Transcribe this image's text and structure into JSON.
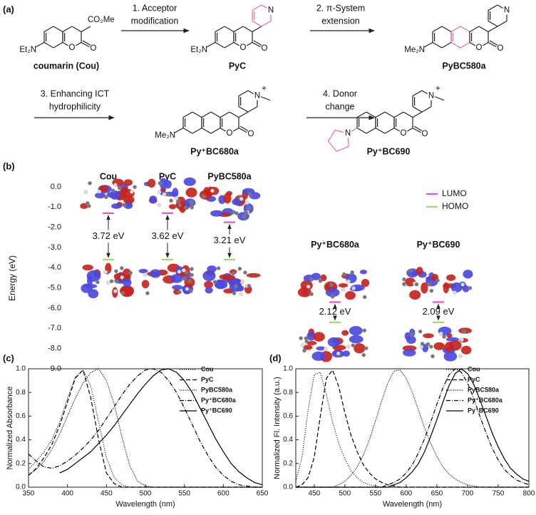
{
  "panels": [
    "(a)",
    "(b)",
    "(c)",
    "(d)"
  ],
  "scheme": {
    "steps": [
      [
        "1. Acceptor",
        "modification"
      ],
      [
        "2. π-System",
        "extension"
      ],
      [
        "3. Enhancing ICT",
        "hydrophilicity"
      ],
      [
        "4. Donor",
        "change"
      ]
    ],
    "compounds": [
      {
        "name": "coumarin (Cou)",
        "atoms": {
          "substituent": "CO₂Me",
          "donor": "Et₂N",
          "ring_o": "O",
          "carbonyl_o": "O"
        }
      },
      {
        "name": "PyC",
        "atoms": {
          "pyridine_n": "N",
          "donor": "Et₂N",
          "ring_o": "O",
          "carbonyl_o": "O"
        }
      },
      {
        "name": "PyBC580a",
        "atoms": {
          "pyridine_n": "N",
          "donor": "Me₂N",
          "ring_o": "O",
          "carbonyl_o": "O"
        }
      },
      {
        "name": "Py⁺BC680a",
        "atoms": {
          "pyridine_n": "N",
          "charge": "+",
          "donor": "Me₂N",
          "ring_o": "O",
          "carbonyl_o": "O"
        }
      },
      {
        "name": "Py⁺BC690",
        "atoms": {
          "pyridine_n": "N",
          "charge": "+",
          "donor": "N",
          "ring_o": "O",
          "carbonyl_o": "O"
        }
      }
    ]
  },
  "chart_data": [
    {
      "type": "energy_levels",
      "ylabel": "Energy (eV)",
      "ylim": [
        -9,
        0
      ],
      "yticks": [
        {
          "value": 0,
          "label": "0.0"
        },
        {
          "value": -1,
          "label": "-1.0"
        },
        {
          "value": -2,
          "label": "-2.0"
        },
        {
          "value": -3,
          "label": "-3.0"
        },
        {
          "value": -4,
          "label": "-4.0"
        },
        {
          "value": -5,
          "label": "-5.0"
        },
        {
          "value": -6,
          "label": "-6.0"
        },
        {
          "value": -7,
          "label": "-7.0"
        },
        {
          "value": -8,
          "label": "-8.0"
        },
        {
          "value": -9,
          "label": "-9.0"
        }
      ],
      "categories": [
        "Cou",
        "PyC",
        "PyBC580a",
        "Py⁺BC680a",
        "Py⁺BC690"
      ],
      "series": [
        {
          "name": "LUMO",
          "color": "#e055c8",
          "values": [
            -1.3,
            -1.3,
            -1.75,
            -5.7,
            -5.7
          ]
        },
        {
          "name": "HOMO",
          "color": "#9ae062",
          "values": [
            -3.6,
            -3.6,
            -3.6,
            -6.7,
            -6.7
          ]
        }
      ],
      "gap_labels": [
        "3.72 eV",
        "3.62 eV",
        "3.21 eV",
        "2.12 eV",
        "2.09 eV"
      ],
      "legend": "upper right"
    },
    {
      "type": "line",
      "xlabel": "Wavelength (nm)",
      "ylabel": "Normalized Absorbance",
      "x": [
        350,
        360,
        370,
        380,
        390,
        400,
        410,
        420,
        430,
        440,
        450,
        460,
        470,
        480,
        490,
        500,
        510,
        520,
        530,
        540,
        550,
        560,
        570,
        580,
        590,
        600,
        610,
        620,
        630,
        640,
        650
      ],
      "xlim": [
        350,
        650
      ],
      "xticks": [
        350,
        400,
        450,
        500,
        550,
        600,
        650
      ],
      "ylim": [
        0,
        1
      ],
      "yticks": [
        {
          "value": 0,
          "label": "0.0"
        },
        0.2,
        0.4,
        0.6,
        0.8,
        {
          "value": 1,
          "label": "1.0"
        }
      ],
      "legend": "upper right",
      "series": [
        {
          "name": "Cou",
          "color": "#000000",
          "dash": "1 2",
          "values": [
            0.15,
            0.22,
            0.3,
            0.4,
            0.55,
            0.75,
            0.93,
            0.99,
            0.85,
            0.55,
            0.25,
            0.08,
            0.02,
            0,
            0,
            0,
            0,
            0,
            0,
            0,
            0,
            0,
            0,
            0,
            0,
            0,
            0,
            0,
            0,
            0,
            0
          ]
        },
        {
          "name": "PyC",
          "color": "#000000",
          "dash": "6 3",
          "values": [
            0.1,
            0.16,
            0.25,
            0.36,
            0.52,
            0.72,
            0.92,
            0.99,
            0.75,
            0.4,
            0.12,
            0.03,
            0,
            0,
            0,
            0,
            0,
            0,
            0,
            0,
            0,
            0,
            0,
            0,
            0,
            0,
            0,
            0,
            0,
            0,
            0
          ]
        },
        {
          "name": "PyBC580a",
          "color": "#000000",
          "dash": "1 1.5",
          "values": [
            0.1,
            0.15,
            0.22,
            0.32,
            0.45,
            0.6,
            0.75,
            0.88,
            0.97,
            1.0,
            0.9,
            0.7,
            0.42,
            0.18,
            0.05,
            0.01,
            0,
            0,
            0,
            0,
            0,
            0,
            0,
            0,
            0,
            0,
            0,
            0,
            0,
            0,
            0
          ]
        },
        {
          "name": "Py⁺BC680a",
          "color": "#000000",
          "dash": "6 2 1 2",
          "values": [
            0.28,
            0.22,
            0.17,
            0.16,
            0.18,
            0.22,
            0.27,
            0.33,
            0.4,
            0.48,
            0.58,
            0.68,
            0.78,
            0.87,
            0.94,
            0.99,
            1.0,
            0.97,
            0.9,
            0.8,
            0.67,
            0.53,
            0.39,
            0.27,
            0.17,
            0.1,
            0.05,
            0.02,
            0.01,
            0,
            0
          ]
        },
        {
          "name": "Py⁺BC690",
          "color": "#000000",
          "dash": "none",
          "values": [
            null,
            null,
            null,
            null,
            0.12,
            0.15,
            0.2,
            0.25,
            0.3,
            0.37,
            0.44,
            0.52,
            0.61,
            0.7,
            0.79,
            0.87,
            0.94,
            0.99,
            1.0,
            0.97,
            0.9,
            0.8,
            0.67,
            0.54,
            0.41,
            0.3,
            0.2,
            0.13,
            0.08,
            0.04,
            0.02
          ]
        }
      ]
    },
    {
      "type": "line",
      "xlabel": "Wavelength (nm)",
      "ylabel": "Normalized Fl. Intensity (a.u.)",
      "x": [
        420,
        430,
        440,
        450,
        460,
        470,
        480,
        490,
        500,
        510,
        520,
        530,
        540,
        550,
        560,
        570,
        580,
        590,
        600,
        610,
        620,
        630,
        640,
        650,
        660,
        670,
        680,
        690,
        700,
        710,
        720,
        730,
        740,
        750,
        760,
        770,
        780,
        790,
        800
      ],
      "xlim": [
        420,
        800
      ],
      "xticks": [
        450,
        500,
        550,
        600,
        650,
        700,
        750,
        800
      ],
      "ylim": [
        0,
        1
      ],
      "yticks": [
        {
          "value": 0,
          "label": "0.0"
        },
        0.2,
        0.4,
        0.6,
        0.8,
        {
          "value": 1,
          "label": "1.0"
        }
      ],
      "legend": "upper right",
      "series": [
        {
          "name": "Cou",
          "color": "#000000",
          "dash": "1 2",
          "values": [
            0.05,
            0.25,
            0.65,
            0.95,
            0.97,
            0.78,
            0.55,
            0.37,
            0.24,
            0.14,
            0.08,
            0.04,
            0.02,
            0.01,
            0,
            0,
            0,
            0,
            0,
            0,
            0,
            0,
            0,
            0,
            0,
            0,
            0,
            0,
            0,
            0,
            0,
            0,
            0,
            0,
            0,
            0,
            0,
            0,
            0
          ]
        },
        {
          "name": "PyC",
          "color": "#000000",
          "dash": "6 3",
          "values": [
            0,
            0.02,
            0.08,
            0.25,
            0.6,
            0.92,
            0.99,
            0.85,
            0.63,
            0.44,
            0.3,
            0.19,
            0.12,
            0.07,
            0.04,
            0.02,
            0.01,
            0,
            0,
            0,
            0,
            0,
            0,
            0,
            0,
            0,
            0,
            0,
            0,
            0,
            0,
            0,
            0,
            0,
            0,
            0,
            0,
            0,
            0
          ]
        },
        {
          "name": "PyBC580a",
          "color": "#000000",
          "dash": "1 1.5",
          "values": [
            0,
            0,
            0,
            0,
            0,
            0,
            0,
            0.02,
            0.05,
            0.1,
            0.17,
            0.27,
            0.4,
            0.56,
            0.73,
            0.88,
            0.98,
            0.99,
            0.92,
            0.8,
            0.65,
            0.5,
            0.37,
            0.26,
            0.17,
            0.11,
            0.07,
            0.04,
            0.02,
            0.01,
            0,
            0,
            0,
            0,
            0,
            0,
            0,
            0,
            0
          ]
        },
        {
          "name": "Py⁺BC680a",
          "color": "#000000",
          "dash": "6 2 1 2",
          "values": [
            0,
            0,
            0,
            0,
            0,
            0,
            0,
            0,
            0,
            0,
            0,
            0,
            0,
            0,
            0,
            0.02,
            0.04,
            0.07,
            0.12,
            0.19,
            0.29,
            0.41,
            0.55,
            0.7,
            0.84,
            0.95,
            1.0,
            0.97,
            0.88,
            0.75,
            0.6,
            0.46,
            0.33,
            0.23,
            0.15,
            0.1,
            0.06,
            0.04,
            0.02
          ]
        },
        {
          "name": "Py⁺BC690",
          "color": "#000000",
          "dash": "none",
          "values": [
            0,
            0,
            0,
            0,
            0,
            0,
            0,
            0,
            0,
            0,
            0,
            0,
            0,
            0,
            0,
            0,
            0.02,
            0.04,
            0.08,
            0.13,
            0.2,
            0.3,
            0.43,
            0.57,
            0.72,
            0.86,
            0.96,
            1.0,
            0.96,
            0.87,
            0.74,
            0.6,
            0.46,
            0.34,
            0.24,
            0.16,
            0.11,
            0.07,
            0.05
          ]
        }
      ]
    }
  ]
}
